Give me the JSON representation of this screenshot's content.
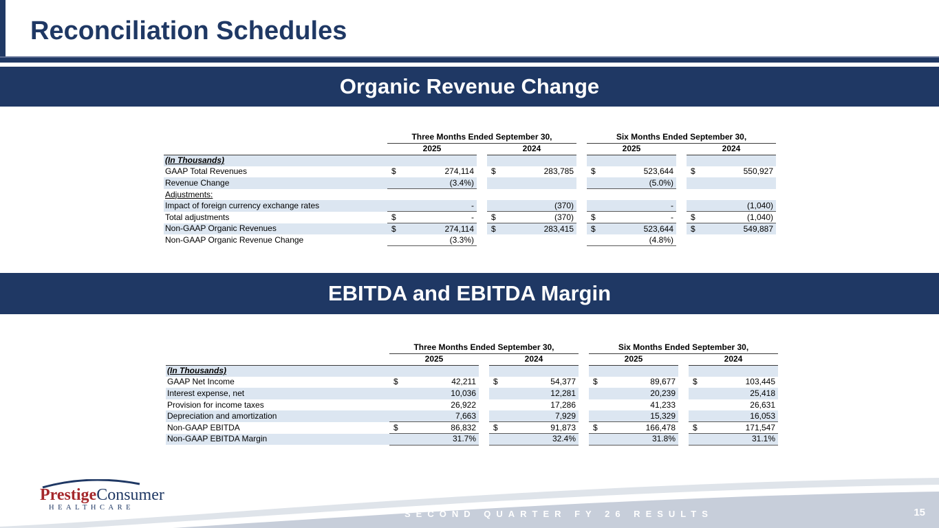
{
  "page": {
    "title": "Reconciliation Schedules",
    "footer_text": "SECOND QUARTER FY 26 RESULTS",
    "page_number": "15"
  },
  "logo": {
    "brand_part1": "Prestige",
    "brand_part2": "Consumer",
    "subtitle": "HEALTHCARE"
  },
  "colors": {
    "navy": "#1f3864",
    "row_shade": "#dce6f1",
    "footer_light_band": "#dfe4ea",
    "footer_main_band": "#c7ceda",
    "logo_red": "#a5282c"
  },
  "sections": [
    {
      "banner": "Organic Revenue Change",
      "table": {
        "col_groups": [
          "Three Months Ended September 30,",
          "Six Months Ended September 30,"
        ],
        "years": [
          "2025",
          "2024",
          "2025",
          "2024"
        ],
        "rows": [
          {
            "label": "(In Thousands)",
            "label_style": "biu",
            "label_top": true,
            "shaded": true,
            "cells": [
              {
                "d": "",
                "v": ""
              },
              {
                "d": "",
                "v": ""
              },
              {
                "d": "",
                "v": ""
              },
              {
                "d": "",
                "v": ""
              }
            ],
            "underline": [
              0,
              0,
              0,
              0
            ]
          },
          {
            "label": "GAAP Total Revenues",
            "label_style": "plain",
            "shaded": false,
            "cells": [
              {
                "d": "$",
                "v": "274,114"
              },
              {
                "d": "$",
                "v": "283,785"
              },
              {
                "d": "$",
                "v": "523,644"
              },
              {
                "d": "$",
                "v": "550,927"
              }
            ],
            "underline": [
              0,
              0,
              0,
              0
            ]
          },
          {
            "label": "Revenue Change",
            "label_style": "plain",
            "shaded": true,
            "cells": [
              {
                "d": "",
                "v": "(3.4%)"
              },
              {
                "d": "",
                "v": ""
              },
              {
                "d": "",
                "v": "(5.0%)"
              },
              {
                "d": "",
                "v": ""
              }
            ],
            "underline": [
              1,
              0,
              1,
              0
            ]
          },
          {
            "label": "Adjustments:",
            "label_style": "lu",
            "shaded": false,
            "cells": [
              {
                "d": "",
                "v": ""
              },
              {
                "d": "",
                "v": ""
              },
              {
                "d": "",
                "v": ""
              },
              {
                "d": "",
                "v": ""
              }
            ],
            "underline": [
              0,
              0,
              0,
              0
            ]
          },
          {
            "label": "Impact of foreign currency exchange rates",
            "label_style": "plain",
            "shaded": true,
            "cells": [
              {
                "d": "",
                "v": "-"
              },
              {
                "d": "",
                "v": "(370)"
              },
              {
                "d": "",
                "v": "-"
              },
              {
                "d": "",
                "v": "(1,040)"
              }
            ],
            "underline": [
              1,
              1,
              1,
              1
            ]
          },
          {
            "label": "Total adjustments",
            "label_style": "plain",
            "shaded": false,
            "cells": [
              {
                "d": "$",
                "v": "-"
              },
              {
                "d": "$",
                "v": "(370)"
              },
              {
                "d": "$",
                "v": "-"
              },
              {
                "d": "$",
                "v": "(1,040)"
              }
            ],
            "underline": [
              1,
              1,
              1,
              1
            ]
          },
          {
            "label": "Non-GAAP Organic Revenues",
            "label_style": "plain",
            "shaded": true,
            "cells": [
              {
                "d": "$",
                "v": "274,114"
              },
              {
                "d": "$",
                "v": "283,415"
              },
              {
                "d": "$",
                "v": "523,644"
              },
              {
                "d": "$",
                "v": "549,887"
              }
            ],
            "underline": [
              0,
              0,
              0,
              0
            ]
          },
          {
            "label": "Non-GAAP Organic Revenue Change",
            "label_style": "plain",
            "shaded": false,
            "cells": [
              {
                "d": "",
                "v": "(3.3%)"
              },
              {
                "d": "",
                "v": ""
              },
              {
                "d": "",
                "v": "(4.8%)"
              },
              {
                "d": "",
                "v": ""
              }
            ],
            "underline": [
              1,
              0,
              1,
              0
            ]
          }
        ]
      }
    },
    {
      "banner": "EBITDA and EBITDA Margin",
      "table": {
        "col_groups": [
          "Three Months Ended September 30,",
          "Six Months Ended September 30,"
        ],
        "years": [
          "2025",
          "2024",
          "2025",
          "2024"
        ],
        "rows": [
          {
            "label": "(In Thousands)",
            "label_style": "biu",
            "label_top": true,
            "shaded": true,
            "cells": [
              {
                "d": "",
                "v": ""
              },
              {
                "d": "",
                "v": ""
              },
              {
                "d": "",
                "v": ""
              },
              {
                "d": "",
                "v": ""
              }
            ],
            "underline": [
              0,
              0,
              0,
              0
            ]
          },
          {
            "label": "GAAP Net Income",
            "label_style": "plain",
            "shaded": false,
            "cells": [
              {
                "d": "$",
                "v": "42,211"
              },
              {
                "d": "$",
                "v": "54,377"
              },
              {
                "d": "$",
                "v": "89,677"
              },
              {
                "d": "$",
                "v": "103,445"
              }
            ],
            "underline": [
              0,
              0,
              0,
              0
            ]
          },
          {
            "label": "Interest expense, net",
            "label_style": "plain",
            "shaded": true,
            "cells": [
              {
                "d": "",
                "v": "10,036"
              },
              {
                "d": "",
                "v": "12,281"
              },
              {
                "d": "",
                "v": "20,239"
              },
              {
                "d": "",
                "v": "25,418"
              }
            ],
            "underline": [
              0,
              0,
              0,
              0
            ]
          },
          {
            "label": "Provision for income taxes",
            "label_style": "plain",
            "shaded": false,
            "cells": [
              {
                "d": "",
                "v": "26,922"
              },
              {
                "d": "",
                "v": "17,286"
              },
              {
                "d": "",
                "v": "41,233"
              },
              {
                "d": "",
                "v": "26,631"
              }
            ],
            "underline": [
              0,
              0,
              0,
              0
            ]
          },
          {
            "label": "Depreciation and amortization",
            "label_style": "plain",
            "shaded": true,
            "cells": [
              {
                "d": "",
                "v": "7,663"
              },
              {
                "d": "",
                "v": "7,929"
              },
              {
                "d": "",
                "v": "15,329"
              },
              {
                "d": "",
                "v": "16,053"
              }
            ],
            "underline": [
              1,
              1,
              1,
              1
            ]
          },
          {
            "label": "Non-GAAP EBITDA",
            "label_style": "plain",
            "shaded": false,
            "cells": [
              {
                "d": "$",
                "v": "86,832"
              },
              {
                "d": "$",
                "v": "91,873"
              },
              {
                "d": "$",
                "v": "166,478"
              },
              {
                "d": "$",
                "v": "171,547"
              }
            ],
            "underline": [
              1,
              1,
              1,
              1
            ]
          },
          {
            "label": "Non-GAAP EBITDA Margin",
            "label_style": "plain",
            "shaded": true,
            "cells": [
              {
                "d": "",
                "v": "31.7%"
              },
              {
                "d": "",
                "v": "32.4%"
              },
              {
                "d": "",
                "v": "31.8%"
              },
              {
                "d": "",
                "v": "31.1%"
              }
            ],
            "underline": [
              1,
              1,
              1,
              1
            ]
          }
        ]
      }
    }
  ]
}
